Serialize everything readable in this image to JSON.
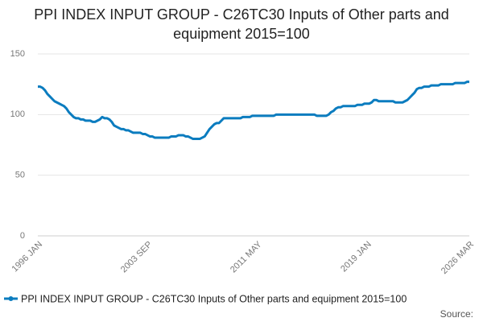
{
  "chart_data": {
    "type": "line",
    "title": "PPI INDEX INPUT GROUP - C26TC30 Inputs of Other parts and equipment 2015=100",
    "source": "Source:",
    "categories": [
      "1996 JAN",
      null,
      null,
      null,
      null,
      null,
      null,
      null,
      null,
      null,
      null,
      null,
      null,
      null,
      null,
      null,
      null,
      null,
      null,
      null,
      null,
      null,
      null,
      null,
      null,
      null,
      null,
      null,
      null,
      null,
      null,
      null,
      null,
      null,
      null,
      null,
      null,
      null,
      null,
      null,
      null,
      null,
      null,
      null,
      null,
      null,
      "2003 SEP",
      null,
      null,
      null,
      null,
      null,
      null,
      null,
      null,
      null,
      null,
      null,
      null,
      null,
      null,
      null,
      null,
      null,
      null,
      null,
      null,
      null,
      null,
      null,
      null,
      null,
      null,
      null,
      null,
      null,
      null,
      null,
      null,
      null,
      null,
      null,
      null,
      null,
      null,
      null,
      null,
      null,
      null,
      null,
      null,
      null,
      "2011 MAY",
      null,
      null,
      null,
      null,
      null,
      null,
      null,
      null,
      null,
      null,
      null,
      null,
      null,
      null,
      null,
      null,
      null,
      null,
      null,
      null,
      null,
      null,
      null,
      null,
      null,
      null,
      null,
      null,
      null,
      null,
      null,
      null,
      null,
      null,
      null,
      null,
      null,
      null,
      null,
      null,
      null,
      null,
      null,
      null,
      null,
      "2019 JAN",
      null,
      null,
      null,
      null,
      null,
      null,
      null,
      null,
      null,
      null,
      null,
      null,
      null,
      null,
      null,
      null,
      null,
      null,
      null,
      null,
      null,
      null,
      null,
      null,
      null,
      null,
      null,
      null,
      null,
      null,
      null,
      null,
      null,
      null,
      null,
      null,
      null,
      null,
      null,
      null,
      null,
      null,
      "2026 MAR"
    ],
    "series": [
      {
        "name": "PPI INDEX INPUT GROUP - C26TC30 Inputs of Other parts and equipment 2015=100",
        "color": "#0b7cbf",
        "values": [
          123,
          123,
          122,
          120,
          117,
          115,
          113,
          111,
          110,
          109,
          108,
          107,
          105,
          102,
          100,
          98,
          97,
          97,
          96,
          96,
          95,
          95,
          95,
          94,
          94,
          95,
          96,
          98,
          97,
          97,
          96,
          94,
          91,
          90,
          89,
          88,
          88,
          87,
          87,
          86,
          85,
          85,
          85,
          85,
          84,
          84,
          83,
          82,
          82,
          81,
          81,
          81,
          81,
          81,
          81,
          81,
          82,
          82,
          82,
          83,
          83,
          83,
          82,
          82,
          81,
          80,
          80,
          80,
          80,
          81,
          82,
          85,
          88,
          90,
          92,
          93,
          93,
          95,
          97,
          97,
          97,
          97,
          97,
          97,
          97,
          97,
          98,
          98,
          98,
          98,
          99,
          99,
          99,
          99,
          99,
          99,
          99,
          99,
          99,
          99,
          100,
          100,
          100,
          100,
          100,
          100,
          100,
          100,
          100,
          100,
          100,
          100,
          100,
          100,
          100,
          100,
          100,
          99,
          99,
          99,
          99,
          99,
          100,
          102,
          103,
          105,
          106,
          106,
          107,
          107,
          107,
          107,
          107,
          107,
          108,
          108,
          108,
          109,
          109,
          109,
          110,
          112,
          112,
          111,
          111,
          111,
          111,
          111,
          111,
          111,
          110,
          110,
          110,
          110,
          111,
          112,
          114,
          116,
          118,
          121,
          122,
          122,
          123,
          123,
          123,
          124,
          124,
          124,
          124,
          125,
          125,
          125,
          125,
          125,
          125,
          126,
          126,
          126,
          126,
          126,
          127,
          127
        ]
      }
    ],
    "ylim": [
      0,
      150
    ],
    "yticks": [
      0,
      50,
      100,
      150
    ],
    "grid": true
  }
}
